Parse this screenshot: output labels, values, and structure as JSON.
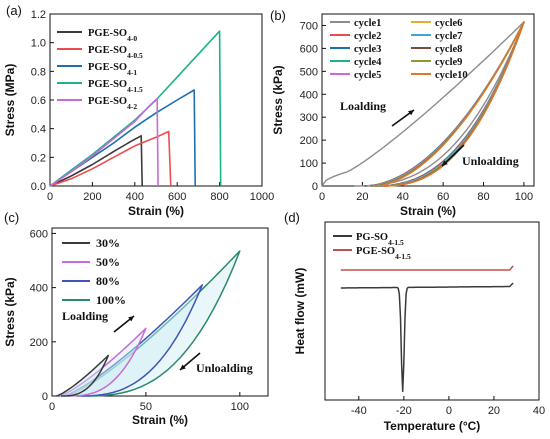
{
  "chart_data": [
    {
      "panel": "(a)",
      "type": "line",
      "xlabel": "Strain (%)",
      "ylabel": "Stress (MPa)",
      "xlim": [
        0,
        1000
      ],
      "ylim": [
        0,
        1.2
      ],
      "xticks": [
        "0",
        "200",
        "400",
        "600",
        "800",
        "1000"
      ],
      "yticks": [
        "0.0",
        "0.2",
        "0.4",
        "0.6",
        "0.8",
        "1.0",
        "1.2"
      ],
      "legend_position": "top-left",
      "series": [
        {
          "name": "PGE-SO",
          "sub": "4-0",
          "color": "#3a3a3a",
          "points": [
            [
              0,
              0
            ],
            [
              100,
              0.07
            ],
            [
              200,
              0.15
            ],
            [
              300,
              0.24
            ],
            [
              380,
              0.31
            ],
            [
              430,
              0.35
            ],
            [
              435,
              0
            ]
          ]
        },
        {
          "name": "PGE-SO",
          "sub": "4-0.5",
          "color": "#ee4c4c",
          "points": [
            [
              0,
              0
            ],
            [
              100,
              0.05
            ],
            [
              200,
              0.12
            ],
            [
              300,
              0.2
            ],
            [
              400,
              0.28
            ],
            [
              500,
              0.34
            ],
            [
              560,
              0.38
            ],
            [
              570,
              0
            ]
          ]
        },
        {
          "name": "PGE-SO",
          "sub": "4-1",
          "color": "#1c6fb5",
          "points": [
            [
              0,
              0
            ],
            [
              100,
              0.1
            ],
            [
              200,
              0.2
            ],
            [
              300,
              0.3
            ],
            [
              400,
              0.41
            ],
            [
              500,
              0.51
            ],
            [
              600,
              0.6
            ],
            [
              680,
              0.67
            ],
            [
              685,
              0
            ]
          ]
        },
        {
          "name": "PGE-SO",
          "sub": "4-1.5",
          "color": "#19b487",
          "points": [
            [
              0,
              0
            ],
            [
              100,
              0.11
            ],
            [
              200,
              0.22
            ],
            [
              300,
              0.34
            ],
            [
              400,
              0.46
            ],
            [
              500,
              0.6
            ],
            [
              600,
              0.76
            ],
            [
              700,
              0.92
            ],
            [
              800,
              1.08
            ],
            [
              805,
              0
            ]
          ]
        },
        {
          "name": "PGE-SO",
          "sub": "4-2",
          "color": "#c86ad8",
          "points": [
            [
              0,
              0
            ],
            [
              100,
              0.1
            ],
            [
              200,
              0.21
            ],
            [
              300,
              0.33
            ],
            [
              400,
              0.45
            ],
            [
              470,
              0.56
            ],
            [
              505,
              0.61
            ],
            [
              510,
              0
            ]
          ]
        }
      ]
    },
    {
      "panel": "(b)",
      "type": "line",
      "xlabel": "Strain (%)",
      "ylabel": "Stress (kPa)",
      "xlim": [
        0,
        105
      ],
      "ylim": [
        0,
        750
      ],
      "xticks": [
        "0",
        "20",
        "40",
        "60",
        "80",
        "100"
      ],
      "yticks": [
        "0",
        "100",
        "200",
        "300",
        "400",
        "500",
        "600",
        "700"
      ],
      "legend_position": "top",
      "annotations": [
        "Loalding",
        "Unloalding"
      ],
      "max_point": [
        100,
        715
      ],
      "series": [
        {
          "name": "cycle1",
          "color": "#8c8c8c"
        },
        {
          "name": "cycle2",
          "color": "#ee4c4c"
        },
        {
          "name": "cycle3",
          "color": "#1c6fb5"
        },
        {
          "name": "cycle4",
          "color": "#19b487"
        },
        {
          "name": "cycle5",
          "color": "#c86ad8"
        },
        {
          "name": "cycle6",
          "color": "#e1b02c"
        },
        {
          "name": "cycle7",
          "color": "#3ca7d6"
        },
        {
          "name": "cycle8",
          "color": "#7a4a3a"
        },
        {
          "name": "cycle9",
          "color": "#8d9a2c"
        },
        {
          "name": "cycle10",
          "color": "#e0762a"
        }
      ]
    },
    {
      "panel": "(c)",
      "type": "line",
      "xlabel": "Strain (%)",
      "ylabel": "Stress (kPa)",
      "xlim": [
        0,
        115
      ],
      "ylim": [
        0,
        620
      ],
      "xticks": [
        "0",
        "50",
        "100"
      ],
      "yticks": [
        "0",
        "200",
        "400",
        "600"
      ],
      "legend_position": "top-left",
      "annotations": [
        "Loalding",
        "Unloalding"
      ],
      "series": [
        {
          "name": "30%",
          "color": "#3a3a3a",
          "max_strain": 30,
          "max_stress": 150
        },
        {
          "name": "50%",
          "color": "#c86ad8",
          "max_strain": 50,
          "max_stress": 250
        },
        {
          "name": "80%",
          "color": "#3d56b8",
          "max_strain": 80,
          "max_stress": 410
        },
        {
          "name": "100%",
          "color": "#2a8a6a",
          "max_strain": 100,
          "max_stress": 535
        }
      ]
    },
    {
      "panel": "(d)",
      "type": "line",
      "xlabel": "Temperature (°C)",
      "ylabel": "Heat flow (mW)",
      "xlim": [
        -55,
        40
      ],
      "xticks": [
        "-40",
        "-20",
        "0",
        "20",
        "40"
      ],
      "legend_position": "top-left",
      "series": [
        {
          "name": "PG-SO",
          "sub": "4-1.5",
          "color": "#3a3a3a"
        },
        {
          "name": "PGE-SO",
          "sub": "4-1.5",
          "color": "#c0504d"
        }
      ]
    }
  ]
}
